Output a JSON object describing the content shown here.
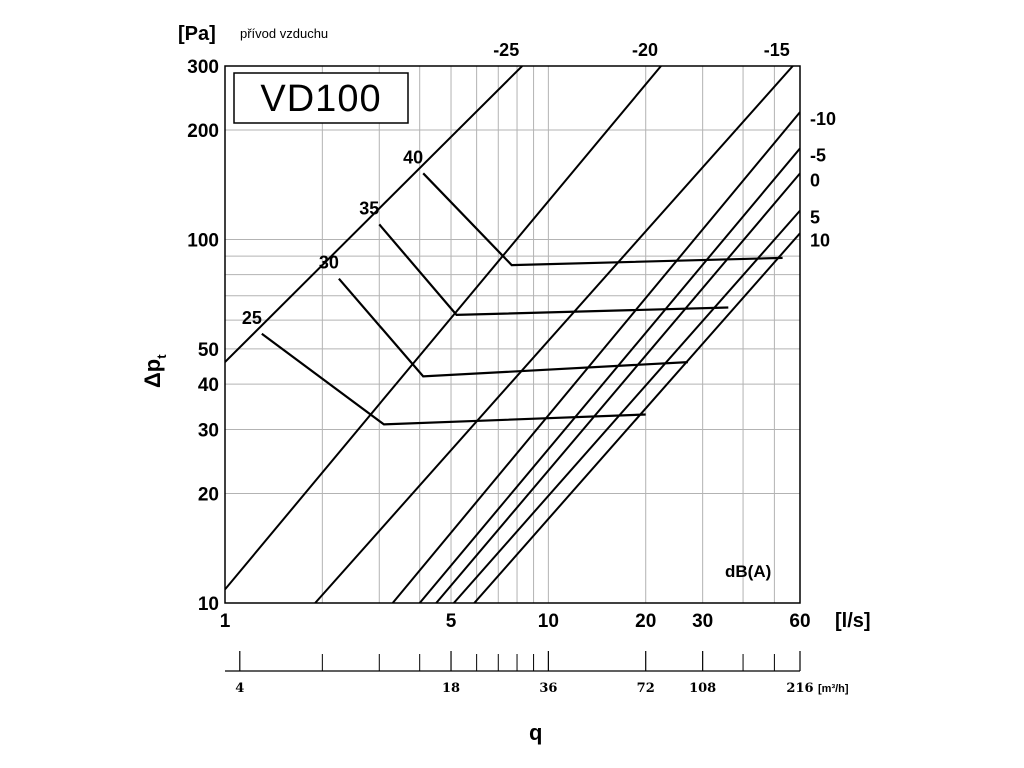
{
  "chart_data": {
    "type": "line",
    "title": "přívod vzduchu",
    "model_label": "VD100",
    "xlabel": "q",
    "x_unit": "[l/s]",
    "x2_unit": "[m³/h]",
    "ylabel_main": "Δp",
    "ylabel_sub": "t",
    "y_unit": "[Pa]",
    "noise_unit": "dB(A)",
    "x_scale": "log",
    "y_scale": "log",
    "xlim": [
      1,
      60
    ],
    "ylim": [
      10,
      300
    ],
    "grid": true,
    "x_ticks": [
      {
        "value": 1,
        "label": "1"
      },
      {
        "value": 5,
        "label": "5"
      },
      {
        "value": 10,
        "label": "10"
      },
      {
        "value": 20,
        "label": "20"
      },
      {
        "value": 30,
        "label": "30"
      },
      {
        "value": 60,
        "label": "60"
      }
    ],
    "x_grid": [
      2,
      3,
      4,
      5,
      6,
      7,
      8,
      9,
      10,
      20,
      30,
      40,
      50,
      60
    ],
    "y_ticks": [
      {
        "value": 10,
        "label": "10"
      },
      {
        "value": 20,
        "label": "20"
      },
      {
        "value": 30,
        "label": "30"
      },
      {
        "value": 40,
        "label": "40"
      },
      {
        "value": 50,
        "label": "50"
      },
      {
        "value": 100,
        "label": "100"
      },
      {
        "value": 200,
        "label": "200"
      },
      {
        "value": 300,
        "label": "300"
      }
    ],
    "y_grid": [
      20,
      30,
      40,
      50,
      60,
      70,
      80,
      90,
      100,
      200,
      300
    ],
    "x2_ticks": [
      {
        "value": 4,
        "label": "4"
      },
      {
        "value": 18,
        "label": "18"
      },
      {
        "value": 36,
        "label": "36"
      },
      {
        "value": 72,
        "label": "72"
      },
      {
        "value": 108,
        "label": "108"
      },
      {
        "value": 216,
        "label": "216"
      }
    ],
    "x2_minor": [
      7.2,
      10.8,
      14.4,
      21.6,
      25.2,
      28.8,
      32.4,
      144,
      180
    ],
    "noise_lines": [
      {
        "label": "-25",
        "points": [
          [
            1,
            46
          ],
          [
            8.3,
            300
          ]
        ]
      },
      {
        "label": "-20",
        "points": [
          [
            1,
            10.9
          ],
          [
            22.3,
            300
          ]
        ]
      },
      {
        "label": "-15",
        "points": [
          [
            1.9,
            10
          ],
          [
            57,
            300
          ]
        ]
      },
      {
        "label": "-10",
        "points": [
          [
            3.3,
            10
          ],
          [
            60,
            224
          ]
        ]
      },
      {
        "label": "-5",
        "points": [
          [
            4.0,
            10
          ],
          [
            60,
            178
          ]
        ]
      },
      {
        "label": "0",
        "points": [
          [
            4.5,
            10
          ],
          [
            60,
            152
          ]
        ]
      },
      {
        "label": "5",
        "points": [
          [
            5.1,
            10
          ],
          [
            60,
            120
          ]
        ]
      },
      {
        "label": "10",
        "points": [
          [
            5.9,
            10
          ],
          [
            60,
            104
          ]
        ]
      }
    ],
    "setting_curves": [
      {
        "label": "25",
        "points": [
          [
            1.3,
            55
          ],
          [
            3.1,
            31
          ],
          [
            20,
            33
          ]
        ]
      },
      {
        "label": "30",
        "points": [
          [
            2.25,
            78
          ],
          [
            4.1,
            42
          ],
          [
            27,
            46
          ]
        ]
      },
      {
        "label": "35",
        "points": [
          [
            3.0,
            110
          ],
          [
            5.2,
            62
          ],
          [
            36,
            65
          ]
        ]
      },
      {
        "label": "40",
        "points": [
          [
            4.1,
            152
          ],
          [
            7.7,
            85
          ],
          [
            53,
            89
          ]
        ]
      }
    ]
  }
}
